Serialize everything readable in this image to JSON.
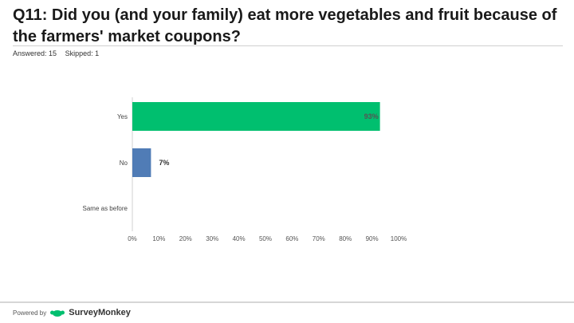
{
  "question": {
    "title": "Q11: Did you (and your family) eat more vegetables and fruit because of the farmers' market coupons?",
    "answered": "Answered: 15",
    "skipped": "Skipped: 1"
  },
  "chart_data": {
    "type": "bar",
    "orientation": "horizontal",
    "categories": [
      "Yes",
      "No",
      "Same as before"
    ],
    "values": [
      93,
      7,
      0
    ],
    "value_labels": [
      "93%",
      "7%",
      ""
    ],
    "colors": [
      "#00bf6f",
      "#507cb6",
      "#00bf6f"
    ],
    "x_ticks": [
      "0%",
      "10%",
      "20%",
      "30%",
      "40%",
      "50%",
      "60%",
      "70%",
      "80%",
      "90%",
      "100%"
    ],
    "xlim": [
      0,
      100
    ],
    "grid": false
  },
  "footer": {
    "powered_by": "Powered by",
    "brand": "SurveyMonkey"
  }
}
